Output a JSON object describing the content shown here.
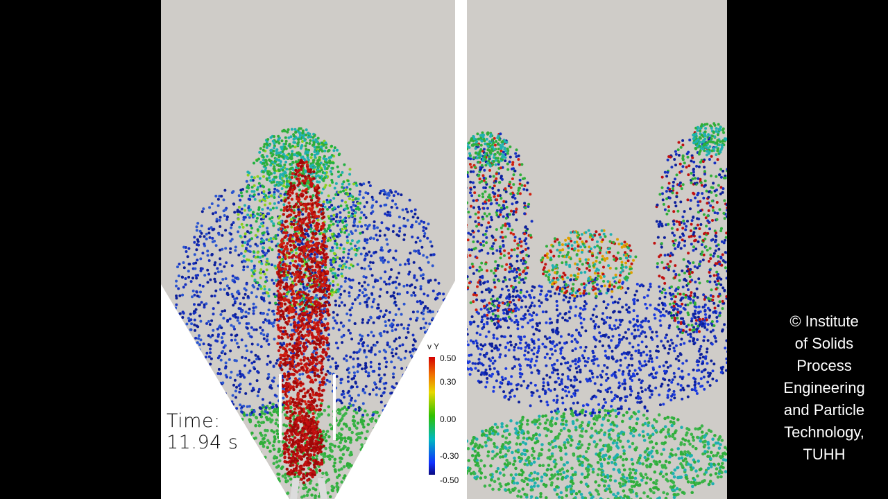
{
  "overlay": {
    "time_label": "Time:",
    "time_value": "11.94 s"
  },
  "legend": {
    "title": "v Y",
    "ticks": [
      "0.50",
      "0.30",
      "0.00",
      "-0.30",
      "-0.50"
    ],
    "colors": [
      "#d40000",
      "#f07000",
      "#e8d800",
      "#2fc000",
      "#00b8c0",
      "#1030ff",
      "#0a0a80"
    ]
  },
  "credit": {
    "lines": [
      "© Institute",
      "of Solids",
      "Process",
      "Engineering",
      "and Particle",
      "Technology,",
      "TUHH"
    ]
  },
  "palette": {
    "background": "#cfccc8",
    "particle_red": "#c01010",
    "particle_green": "#2fae3a",
    "particle_blue": "#1530c0",
    "particle_cyan": "#20b0b0"
  }
}
